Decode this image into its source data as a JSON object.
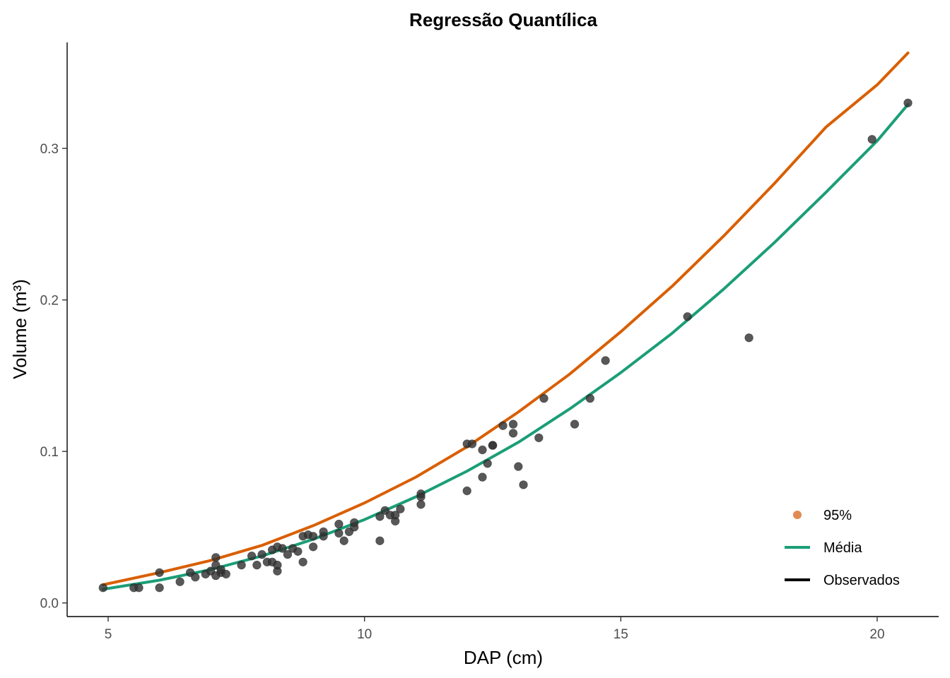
{
  "chart_data": {
    "type": "scatter",
    "title": "Regressão Quantílica",
    "xlabel": "DAP (cm)",
    "ylabel": "Volume (m³)",
    "xlim": [
      4.2,
      21.2
    ],
    "ylim": [
      -0.009,
      0.37
    ],
    "x_ticks": [
      5,
      10,
      15,
      20
    ],
    "x_tick_labels": [
      "5",
      "10",
      "15",
      "20"
    ],
    "y_ticks": [
      0.0,
      0.1,
      0.2,
      0.3
    ],
    "y_tick_labels": [
      "0.0",
      "0.1",
      "0.2",
      "0.3"
    ],
    "grid": false,
    "legend_position": "bottom-right",
    "legend": [
      {
        "label": "95%",
        "kind": "point",
        "color": "#E08B52"
      },
      {
        "label": "Média",
        "kind": "line",
        "color": "#1B9E77"
      },
      {
        "label": "Observados",
        "kind": "line",
        "color": "#000000"
      }
    ],
    "series": [
      {
        "name": "95%",
        "kind": "line",
        "color": "#D95F02",
        "x": [
          4.9,
          6,
          7,
          8,
          9,
          10,
          11,
          12,
          13,
          14,
          15,
          16,
          17,
          18,
          19,
          20,
          20.6
        ],
        "y": [
          0.012,
          0.02,
          0.028,
          0.038,
          0.051,
          0.066,
          0.083,
          0.103,
          0.126,
          0.151,
          0.179,
          0.209,
          0.242,
          0.277,
          0.314,
          0.342,
          0.363
        ]
      },
      {
        "name": "Média",
        "kind": "line",
        "color": "#1B9E77",
        "x": [
          4.9,
          6,
          7,
          8,
          9,
          10,
          11,
          12,
          13,
          14,
          15,
          16,
          17,
          18,
          19,
          20,
          20.6
        ],
        "y": [
          0.009,
          0.015,
          0.022,
          0.031,
          0.042,
          0.055,
          0.07,
          0.087,
          0.106,
          0.128,
          0.152,
          0.178,
          0.207,
          0.238,
          0.271,
          0.305,
          0.329
        ]
      },
      {
        "name": "Observados",
        "kind": "points",
        "color": "#333333",
        "x": [
          4.9,
          5.5,
          5.6,
          6.0,
          6.0,
          6.4,
          6.6,
          6.7,
          6.9,
          7.0,
          7.1,
          7.1,
          7.1,
          7.2,
          7.2,
          7.3,
          7.6,
          7.8,
          7.9,
          8.0,
          8.1,
          8.2,
          8.2,
          8.3,
          8.3,
          8.3,
          8.4,
          8.5,
          8.6,
          8.7,
          8.8,
          8.8,
          8.9,
          9.0,
          9.0,
          9.2,
          9.2,
          9.5,
          9.5,
          9.6,
          9.7,
          9.8,
          9.8,
          10.3,
          10.3,
          10.4,
          10.5,
          10.6,
          10.6,
          10.7,
          11.1,
          11.1,
          11.1,
          12.0,
          12.0,
          12.1,
          12.3,
          12.3,
          12.4,
          12.5,
          12.5,
          12.7,
          12.9,
          12.9,
          13.0,
          13.1,
          13.4,
          13.5,
          14.1,
          14.4,
          14.7,
          16.3,
          17.5,
          19.9,
          20.6
        ],
        "y": [
          0.01,
          0.01,
          0.01,
          0.01,
          0.02,
          0.014,
          0.02,
          0.017,
          0.019,
          0.021,
          0.018,
          0.025,
          0.03,
          0.02,
          0.022,
          0.019,
          0.025,
          0.031,
          0.025,
          0.032,
          0.027,
          0.027,
          0.035,
          0.021,
          0.025,
          0.037,
          0.036,
          0.032,
          0.036,
          0.034,
          0.027,
          0.044,
          0.045,
          0.037,
          0.044,
          0.044,
          0.047,
          0.046,
          0.052,
          0.041,
          0.047,
          0.05,
          0.053,
          0.041,
          0.057,
          0.061,
          0.058,
          0.054,
          0.058,
          0.062,
          0.065,
          0.07,
          0.072,
          0.074,
          0.105,
          0.105,
          0.083,
          0.101,
          0.092,
          0.104,
          0.104,
          0.117,
          0.112,
          0.118,
          0.09,
          0.078,
          0.109,
          0.135,
          0.118,
          0.135,
          0.16,
          0.189,
          0.175,
          0.306,
          0.33
        ]
      }
    ]
  }
}
